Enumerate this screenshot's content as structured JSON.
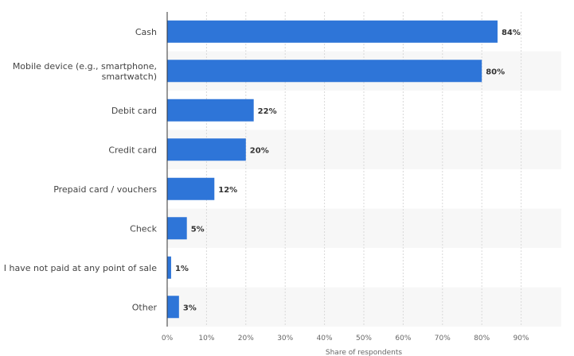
{
  "chart_data": {
    "type": "bar",
    "orientation": "horizontal",
    "categories": [
      [
        "Cash"
      ],
      [
        "Mobile device (e.g., smartphone,",
        "smartwatch)"
      ],
      [
        "Debit card"
      ],
      [
        "Credit card"
      ],
      [
        "Prepaid card / vouchers"
      ],
      [
        "Check"
      ],
      [
        "I have not paid at any point of sale"
      ],
      [
        "Other"
      ]
    ],
    "values": [
      84,
      80,
      22,
      20,
      12,
      5,
      1,
      3
    ],
    "value_labels": [
      "84%",
      "80%",
      "22%",
      "20%",
      "12%",
      "5%",
      "1%",
      "3%"
    ],
    "xlabel": "Share of respondents",
    "xlim": [
      0,
      94
    ],
    "xticks": [
      0,
      10,
      20,
      30,
      40,
      50,
      60,
      70,
      80,
      90
    ],
    "xtick_labels": [
      "0%",
      "10%",
      "20%",
      "30%",
      "40%",
      "50%",
      "60%",
      "70%",
      "80%",
      "90%"
    ],
    "grid": "vertical dashed",
    "bar_color": "#2e75d8",
    "band_color": "#f7f7f7"
  }
}
